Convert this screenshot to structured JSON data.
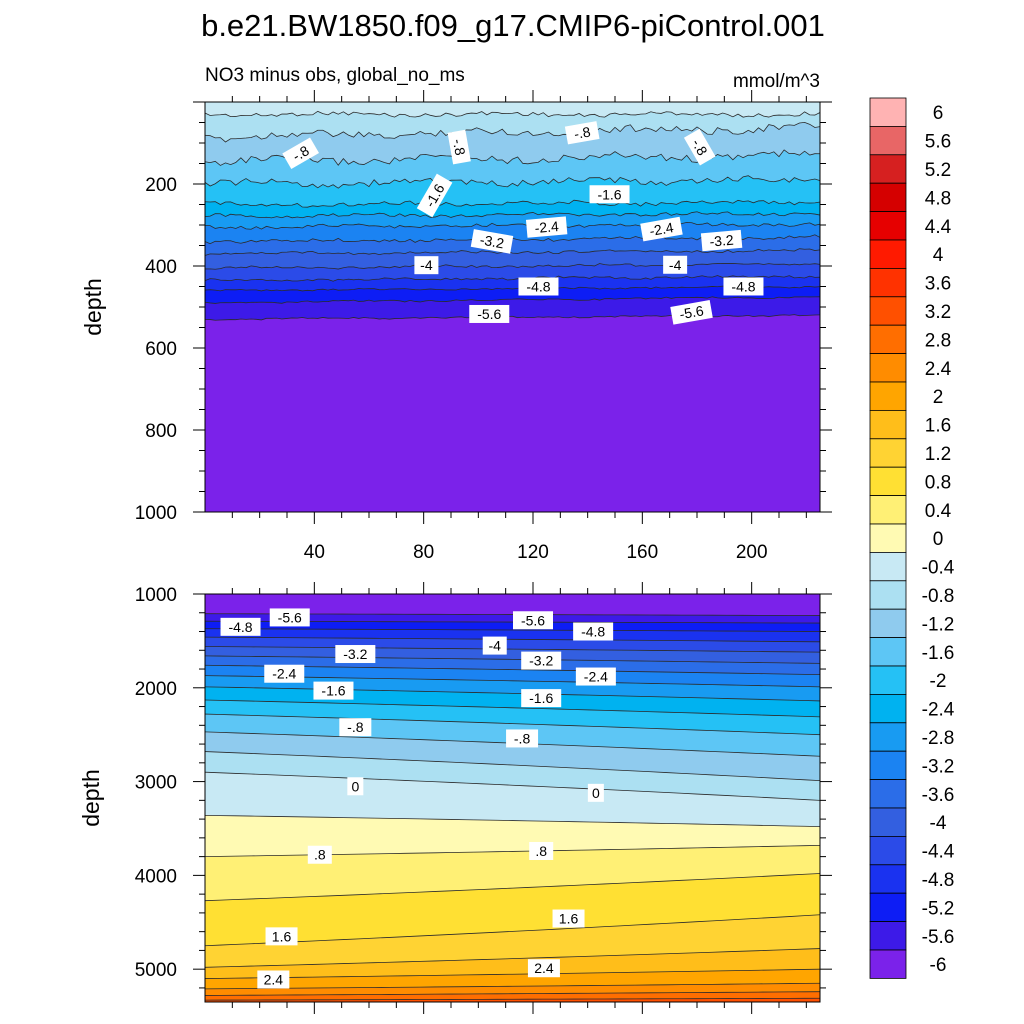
{
  "figure": {
    "title": "b.e21.BW1850.f09_g17.CMIP6-piControl.001",
    "left_string": "NO3 minus obs, global_no_ms",
    "right_string": "mmol/m^3"
  },
  "colorbar": {
    "labels": [
      "6",
      "5.6",
      "5.2",
      "4.8",
      "4.4",
      "4",
      "3.6",
      "3.2",
      "2.8",
      "2.4",
      "2",
      "1.6",
      "1.2",
      "0.8",
      "0.4",
      "0",
      "-0.4",
      "-0.8",
      "-1.2",
      "-1.6",
      "-2",
      "-2.4",
      "-2.8",
      "-3.2",
      "-3.6",
      "-4",
      "-4.4",
      "-4.8",
      "-5.2",
      "-5.6",
      "-6"
    ],
    "colors": [
      "#ffb3b3",
      "#e86666",
      "#d62020",
      "#d50000",
      "#e60000",
      "#ff1a00",
      "#ff3200",
      "#ff5000",
      "#ff6e00",
      "#ff8c00",
      "#ffa500",
      "#ffbe1a",
      "#ffd333",
      "#ffe033",
      "#fff075",
      "#fffab3",
      "#c8e9f4",
      "#ace0f2",
      "#8fcbee",
      "#5dc6f5",
      "#25c1f5",
      "#00b2f0",
      "#189bf2",
      "#1b83f2",
      "#2b6de8",
      "#335fe0",
      "#2b4be8",
      "#1a32f0",
      "#0d1df5",
      "#3d1ae8",
      "#7b22ea"
    ]
  },
  "chart_data": [
    {
      "type": "contour",
      "panel": "upper",
      "ylabel": "depth",
      "x_ticks": [
        "40",
        "80",
        "120",
        "160",
        "200"
      ],
      "y_ticks": [
        "200",
        "400",
        "600",
        "800",
        "1000"
      ],
      "xlim": [
        0,
        225
      ],
      "ylim": [
        1000,
        0
      ],
      "contour_labels": [
        {
          "text": "-.8",
          "x": 35,
          "y": 125,
          "rot": -30
        },
        {
          "text": "-.8",
          "x": 93,
          "y": 110,
          "rot": 80
        },
        {
          "text": "-.8",
          "x": 138,
          "y": 75,
          "rot": -10
        },
        {
          "text": "-.8",
          "x": 181,
          "y": 110,
          "rot": 60
        },
        {
          "text": "-1.6",
          "x": 84,
          "y": 228,
          "rot": -60
        },
        {
          "text": "-1.6",
          "x": 148,
          "y": 225,
          "rot": 0
        },
        {
          "text": "-2.4",
          "x": 125,
          "y": 305,
          "rot": -5
        },
        {
          "text": "-2.4",
          "x": 167,
          "y": 310,
          "rot": -10
        },
        {
          "text": "-3.2",
          "x": 105,
          "y": 340,
          "rot": 10
        },
        {
          "text": "-3.2",
          "x": 189,
          "y": 338,
          "rot": -5
        },
        {
          "text": "-4",
          "x": 81,
          "y": 398,
          "rot": 0
        },
        {
          "text": "-4",
          "x": 172,
          "y": 397,
          "rot": 0
        },
        {
          "text": "-4.8",
          "x": 122,
          "y": 450,
          "rot": 0
        },
        {
          "text": "-4.8",
          "x": 197,
          "y": 450,
          "rot": 0
        },
        {
          "text": "-5.6",
          "x": 104,
          "y": 517,
          "rot": 0
        },
        {
          "text": "-5.6",
          "x": 178,
          "y": 513,
          "rot": -10
        }
      ]
    },
    {
      "type": "contour",
      "panel": "lower",
      "ylabel": "depth",
      "y_ticks": [
        "1000",
        "2000",
        "3000",
        "4000",
        "5000"
      ],
      "xlim": [
        0,
        225
      ],
      "ylim": [
        5350,
        1000
      ],
      "contour_labels": [
        {
          "text": "-5.6",
          "x": 31,
          "y": 1250,
          "rot": 0
        },
        {
          "text": "-4.8",
          "x": 13,
          "y": 1350,
          "rot": 0
        },
        {
          "text": "-5.6",
          "x": 120,
          "y": 1280,
          "rot": 0
        },
        {
          "text": "-4.8",
          "x": 142,
          "y": 1400,
          "rot": 0
        },
        {
          "text": "-4",
          "x": 106,
          "y": 1550,
          "rot": 0
        },
        {
          "text": "-3.2",
          "x": 55,
          "y": 1640,
          "rot": 0
        },
        {
          "text": "-3.2",
          "x": 123,
          "y": 1710,
          "rot": 0
        },
        {
          "text": "-2.4",
          "x": 29,
          "y": 1850,
          "rot": 0
        },
        {
          "text": "-2.4",
          "x": 143,
          "y": 1880,
          "rot": 0
        },
        {
          "text": "-1.6",
          "x": 47,
          "y": 2030,
          "rot": 0
        },
        {
          "text": "-1.6",
          "x": 123,
          "y": 2110,
          "rot": 0
        },
        {
          "text": "-.8",
          "x": 55,
          "y": 2420,
          "rot": 0
        },
        {
          "text": "-.8",
          "x": 116,
          "y": 2540,
          "rot": 0
        },
        {
          "text": "0",
          "x": 55,
          "y": 3050,
          "rot": 0
        },
        {
          "text": "0",
          "x": 143,
          "y": 3120,
          "rot": 0
        },
        {
          "text": ".8",
          "x": 42,
          "y": 3780,
          "rot": 0
        },
        {
          "text": ".8",
          "x": 123,
          "y": 3740,
          "rot": 0
        },
        {
          "text": "1.6",
          "x": 28,
          "y": 4650,
          "rot": 0
        },
        {
          "text": "1.6",
          "x": 133,
          "y": 4460,
          "rot": 0
        },
        {
          "text": "2.4",
          "x": 25,
          "y": 5110,
          "rot": 0
        },
        {
          "text": "2.4",
          "x": 124,
          "y": 4990,
          "rot": 0
        }
      ]
    }
  ]
}
